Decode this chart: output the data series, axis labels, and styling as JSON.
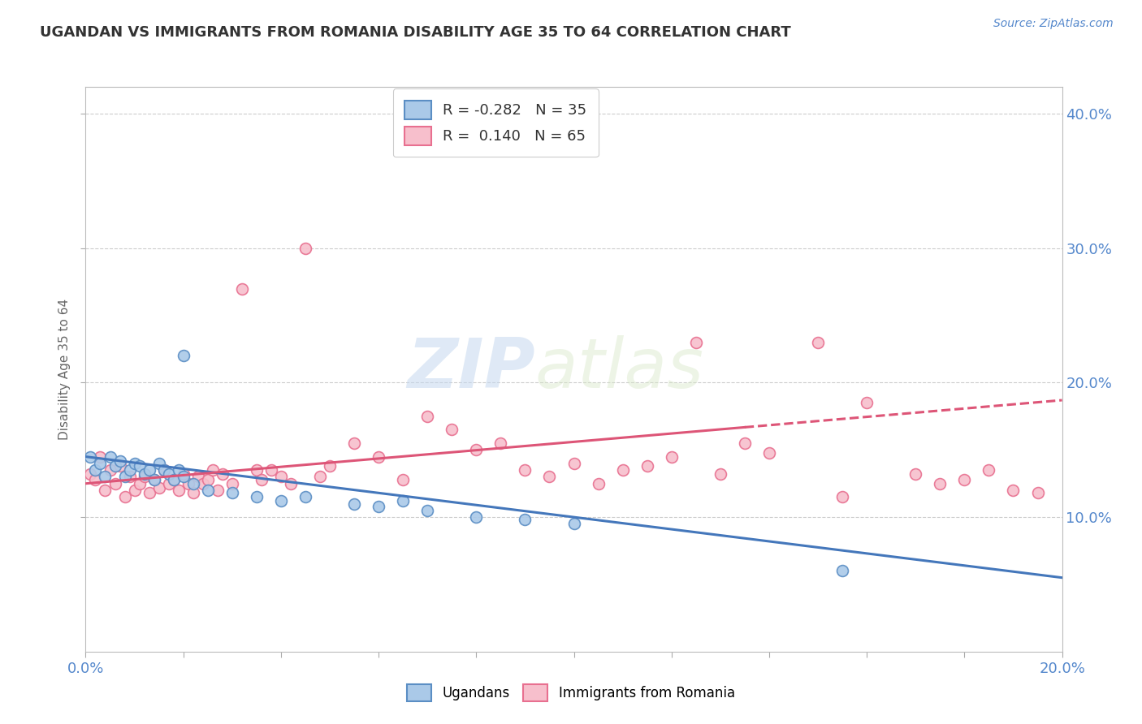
{
  "title": "UGANDAN VS IMMIGRANTS FROM ROMANIA DISABILITY AGE 35 TO 64 CORRELATION CHART",
  "source": "Source: ZipAtlas.com",
  "ylabel": "Disability Age 35 to 64",
  "xlim": [
    0.0,
    0.2
  ],
  "ylim": [
    0.0,
    0.42
  ],
  "yticks_right": [
    0.1,
    0.2,
    0.3,
    0.4
  ],
  "ytick_labels_right": [
    "10.0%",
    "20.0%",
    "30.0%",
    "40.0%"
  ],
  "legend_r_blue": "-0.282",
  "legend_n_blue": "35",
  "legend_r_pink": "0.140",
  "legend_n_pink": "65",
  "blue_color": "#aac9e8",
  "pink_color": "#f7bfcc",
  "blue_edge_color": "#5b8ec4",
  "pink_edge_color": "#e87090",
  "blue_line_color": "#4477bb",
  "pink_line_color": "#dd5577",
  "watermark_zip": "ZIP",
  "watermark_atlas": "atlas",
  "background_color": "#ffffff",
  "grid_color": "#cccccc",
  "title_color": "#333333",
  "ugandan_x": [
    0.001,
    0.002,
    0.003,
    0.004,
    0.005,
    0.006,
    0.007,
    0.008,
    0.009,
    0.01,
    0.011,
    0.012,
    0.013,
    0.014,
    0.015,
    0.016,
    0.017,
    0.018,
    0.019,
    0.02,
    0.022,
    0.025,
    0.03,
    0.035,
    0.04,
    0.045,
    0.055,
    0.06,
    0.065,
    0.07,
    0.08,
    0.09,
    0.1,
    0.155,
    0.02
  ],
  "ugandan_y": [
    0.145,
    0.135,
    0.14,
    0.13,
    0.145,
    0.138,
    0.142,
    0.13,
    0.135,
    0.14,
    0.138,
    0.132,
    0.135,
    0.128,
    0.14,
    0.135,
    0.132,
    0.128,
    0.135,
    0.13,
    0.125,
    0.12,
    0.118,
    0.115,
    0.112,
    0.115,
    0.11,
    0.108,
    0.112,
    0.105,
    0.1,
    0.098,
    0.095,
    0.06,
    0.22
  ],
  "romania_x": [
    0.001,
    0.002,
    0.003,
    0.004,
    0.005,
    0.006,
    0.007,
    0.008,
    0.009,
    0.01,
    0.011,
    0.012,
    0.013,
    0.014,
    0.015,
    0.016,
    0.017,
    0.018,
    0.019,
    0.02,
    0.021,
    0.022,
    0.023,
    0.024,
    0.025,
    0.026,
    0.027,
    0.028,
    0.03,
    0.032,
    0.035,
    0.036,
    0.038,
    0.04,
    0.042,
    0.045,
    0.048,
    0.05,
    0.055,
    0.06,
    0.065,
    0.07,
    0.075,
    0.08,
    0.085,
    0.09,
    0.095,
    0.1,
    0.105,
    0.11,
    0.115,
    0.12,
    0.125,
    0.13,
    0.135,
    0.14,
    0.15,
    0.155,
    0.16,
    0.17,
    0.175,
    0.18,
    0.185,
    0.19,
    0.195
  ],
  "romania_y": [
    0.132,
    0.128,
    0.145,
    0.12,
    0.135,
    0.125,
    0.138,
    0.115,
    0.13,
    0.12,
    0.125,
    0.13,
    0.118,
    0.128,
    0.122,
    0.135,
    0.125,
    0.128,
    0.12,
    0.132,
    0.125,
    0.118,
    0.13,
    0.125,
    0.128,
    0.135,
    0.12,
    0.132,
    0.125,
    0.27,
    0.135,
    0.128,
    0.135,
    0.13,
    0.125,
    0.3,
    0.13,
    0.138,
    0.155,
    0.145,
    0.128,
    0.175,
    0.165,
    0.15,
    0.155,
    0.135,
    0.13,
    0.14,
    0.125,
    0.135,
    0.138,
    0.145,
    0.23,
    0.132,
    0.155,
    0.148,
    0.23,
    0.115,
    0.185,
    0.132,
    0.125,
    0.128,
    0.135,
    0.12,
    0.118
  ]
}
